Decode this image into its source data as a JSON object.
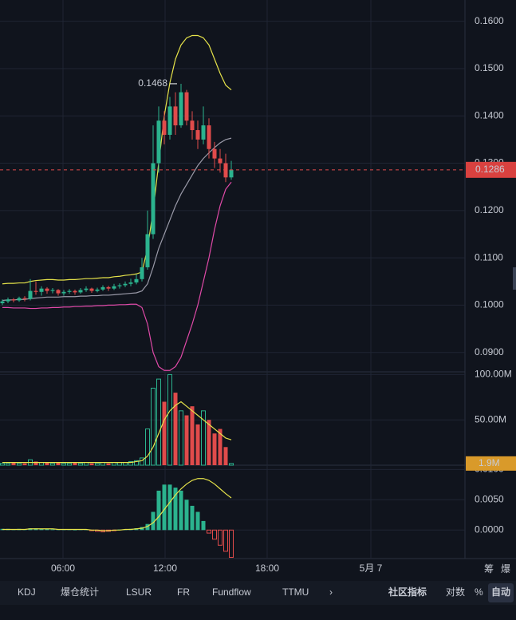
{
  "price_panel": {
    "yticks": [
      {
        "value": 0.16,
        "label": "0.1600"
      },
      {
        "value": 0.15,
        "label": "0.1500"
      },
      {
        "value": 0.14,
        "label": "0.1400"
      },
      {
        "value": 0.13,
        "label": "0.1300"
      },
      {
        "value": 0.12,
        "label": "0.1200"
      },
      {
        "value": 0.11,
        "label": "0.1100"
      },
      {
        "value": 0.1,
        "label": "0.1000"
      },
      {
        "value": 0.09,
        "label": "0.0900"
      }
    ],
    "ylim": [
      0.0859,
      0.1645
    ],
    "last_price": 0.1286,
    "peak": {
      "value": 0.1468,
      "label": "0.1468"
    },
    "candles": [
      [
        0.1004,
        0.1012,
        0.1,
        0.1008
      ],
      [
        0.1008,
        0.1016,
        0.1004,
        0.1012
      ],
      [
        0.1012,
        0.1015,
        0.1006,
        0.101
      ],
      [
        0.101,
        0.1018,
        0.1007,
        0.1015
      ],
      [
        0.1015,
        0.1019,
        0.1008,
        0.1013
      ],
      [
        0.1013,
        0.1055,
        0.101,
        0.103
      ],
      [
        0.103,
        0.105,
        0.1022,
        0.1028
      ],
      [
        0.1028,
        0.104,
        0.102,
        0.1035
      ],
      [
        0.1035,
        0.1038,
        0.1024,
        0.103
      ],
      [
        0.103,
        0.1036,
        0.1025,
        0.1032
      ],
      [
        0.1032,
        0.1034,
        0.102,
        0.1025
      ],
      [
        0.1025,
        0.1032,
        0.102,
        0.1028
      ],
      [
        0.1028,
        0.1034,
        0.1024,
        0.103
      ],
      [
        0.103,
        0.1033,
        0.1022,
        0.1027
      ],
      [
        0.1027,
        0.1036,
        0.1024,
        0.1032
      ],
      [
        0.1032,
        0.104,
        0.1028,
        0.1035
      ],
      [
        0.1035,
        0.1037,
        0.1026,
        0.103
      ],
      [
        0.103,
        0.1037,
        0.1027,
        0.1033
      ],
      [
        0.1033,
        0.1042,
        0.103,
        0.1038
      ],
      [
        0.1038,
        0.1041,
        0.103,
        0.1035
      ],
      [
        0.1035,
        0.1045,
        0.1032,
        0.104
      ],
      [
        0.104,
        0.1046,
        0.1035,
        0.1042
      ],
      [
        0.1042,
        0.105,
        0.1038,
        0.1045
      ],
      [
        0.1045,
        0.1056,
        0.104,
        0.1048
      ],
      [
        0.1048,
        0.1065,
        0.1044,
        0.1055
      ],
      [
        0.1055,
        0.11,
        0.105,
        0.108
      ],
      [
        0.108,
        0.12,
        0.1075,
        0.115
      ],
      [
        0.115,
        0.138,
        0.114,
        0.13
      ],
      [
        0.13,
        0.142,
        0.128,
        0.139
      ],
      [
        0.139,
        0.141,
        0.134,
        0.136
      ],
      [
        0.136,
        0.144,
        0.135,
        0.142
      ],
      [
        0.142,
        0.145,
        0.136,
        0.138
      ],
      [
        0.138,
        0.1468,
        0.1375,
        0.145
      ],
      [
        0.145,
        0.1455,
        0.138,
        0.139
      ],
      [
        0.139,
        0.141,
        0.135,
        0.137
      ],
      [
        0.137,
        0.139,
        0.133,
        0.135
      ],
      [
        0.135,
        0.142,
        0.134,
        0.138
      ],
      [
        0.138,
        0.1395,
        0.131,
        0.133
      ],
      [
        0.133,
        0.1345,
        0.129,
        0.131
      ],
      [
        0.131,
        0.133,
        0.128,
        0.13
      ],
      [
        0.13,
        0.132,
        0.126,
        0.127
      ],
      [
        0.127,
        0.1305,
        0.1265,
        0.1286
      ]
    ],
    "bands": [
      {
        "name": "upper",
        "color": "#e6e34a",
        "values": [
          0.1045,
          0.1046,
          0.1046,
          0.1047,
          0.1047,
          0.105,
          0.1052,
          0.1053,
          0.1054,
          0.1054,
          0.1053,
          0.1053,
          0.1054,
          0.1054,
          0.1055,
          0.1056,
          0.1056,
          0.1057,
          0.1058,
          0.1058,
          0.106,
          0.1061,
          0.1063,
          0.1064,
          0.1066,
          0.107,
          0.112,
          0.12,
          0.13,
          0.14,
          0.147,
          0.152,
          0.155,
          0.1565,
          0.157,
          0.157,
          0.1565,
          0.155,
          0.152,
          0.149,
          0.1465,
          0.1455
        ]
      },
      {
        "name": "mid",
        "color": "#9a9aa8",
        "values": [
          0.101,
          0.1011,
          0.1011,
          0.1012,
          0.1012,
          0.1014,
          0.1015,
          0.1016,
          0.1017,
          0.1017,
          0.1017,
          0.1018,
          0.1018,
          0.1018,
          0.1019,
          0.1019,
          0.102,
          0.102,
          0.1021,
          0.1021,
          0.1022,
          0.1023,
          0.1024,
          0.1025,
          0.1026,
          0.103,
          0.1045,
          0.108,
          0.112,
          0.115,
          0.118,
          0.121,
          0.1235,
          0.1255,
          0.1275,
          0.1295,
          0.131,
          0.1322,
          0.1333,
          0.1343,
          0.135,
          0.1353
        ]
      },
      {
        "name": "lower",
        "color": "#e04aa8",
        "values": [
          0.0995,
          0.0995,
          0.0994,
          0.0994,
          0.0994,
          0.0993,
          0.0993,
          0.0994,
          0.0994,
          0.0995,
          0.0995,
          0.0996,
          0.0996,
          0.0997,
          0.0997,
          0.0998,
          0.0998,
          0.0999,
          0.0999,
          0.1,
          0.1,
          0.1001,
          0.1001,
          0.1002,
          0.1002,
          0.0995,
          0.096,
          0.09,
          0.087,
          0.0862,
          0.0862,
          0.087,
          0.089,
          0.0925,
          0.096,
          0.1,
          0.105,
          0.11,
          0.116,
          0.121,
          0.1245,
          0.126
        ]
      }
    ]
  },
  "volume_panel": {
    "yticks": [
      {
        "value": 100,
        "label": "100.00M"
      },
      {
        "value": 50,
        "label": "50.00M"
      }
    ],
    "ylim": [
      0,
      103
    ],
    "last": {
      "value": 1.9,
      "label": "1.9M"
    },
    "values": [
      2,
      2,
      3,
      2,
      2,
      6,
      4,
      3,
      3,
      2,
      3,
      2,
      2,
      3,
      2,
      3,
      2,
      2,
      3,
      2,
      3,
      3,
      3,
      4,
      5,
      8,
      40,
      85,
      95,
      70,
      100,
      80,
      60,
      55,
      65,
      45,
      60,
      50,
      35,
      40,
      20,
      1.9
    ],
    "ma": {
      "color": "#e6e34a",
      "values": [
        3,
        3,
        3,
        3,
        3,
        3,
        3,
        3,
        3,
        3,
        3,
        3,
        3,
        3,
        3,
        3,
        3,
        3,
        3,
        3,
        3,
        3,
        3,
        3,
        4,
        5,
        10,
        20,
        35,
        50,
        60,
        66,
        70,
        65,
        60,
        55,
        50,
        45,
        40,
        35,
        30,
        28
      ]
    }
  },
  "macd_panel": {
    "yticks": [
      {
        "value": 0.01,
        "label": "0.0100"
      },
      {
        "value": 0.005,
        "label": "0.0050"
      },
      {
        "value": 0,
        "label": "0.0000"
      }
    ],
    "ylim": [
      -0.0047,
      0.0107
    ],
    "hist": [
      0.0002,
      0.0002,
      0.0001,
      0.0002,
      0.0001,
      0.0003,
      0.0003,
      0.0002,
      0.0002,
      0.0001,
      0.0001,
      0.0001,
      0.0001,
      0.0,
      0.0001,
      0.0001,
      -0.0001,
      -0.0002,
      -0.0003,
      -0.0002,
      -0.0001,
      0.0001,
      0.0001,
      0.0002,
      0.0003,
      0.0005,
      0.001,
      0.003,
      0.0065,
      0.0075,
      0.0075,
      0.007,
      0.0065,
      0.005,
      0.004,
      0.003,
      0.0015,
      -0.0005,
      -0.0015,
      -0.0025,
      -0.0035,
      -0.0045
    ],
    "signal": {
      "color": "#e6e34a",
      "values": [
        0.0001,
        0.0001,
        0.0001,
        0.0001,
        0.0001,
        0.0002,
        0.0002,
        0.0002,
        0.0002,
        0.0002,
        0.0001,
        0.0001,
        0.0001,
        0.0001,
        0.0001,
        0.0001,
        0.0,
        0.0,
        -0.0001,
        -0.0001,
        0.0,
        0.0,
        0.0001,
        0.0001,
        0.0002,
        0.0003,
        0.0006,
        0.0012,
        0.0022,
        0.0034,
        0.0046,
        0.0058,
        0.0068,
        0.0076,
        0.0082,
        0.0085,
        0.0085,
        0.0082,
        0.0076,
        0.0068,
        0.006,
        0.0053
      ]
    }
  },
  "time_axis": [
    "06:00",
    "12:00",
    "18:00",
    "5月 7"
  ],
  "side_labels": [
    "筹",
    "爆"
  ],
  "tabs": [
    "KDJ",
    "爆仓统计",
    "LSUR",
    "FR",
    "Fundflow",
    "TTMU",
    "›"
  ],
  "tools": [
    "社区指标",
    "对数",
    "%",
    "自动"
  ]
}
